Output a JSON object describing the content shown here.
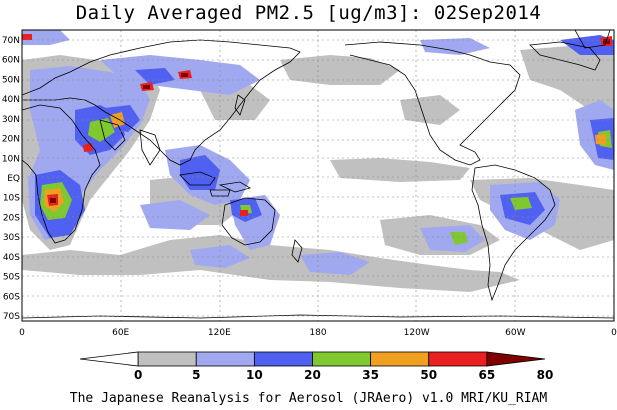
{
  "title": "Daily Averaged PM2.5 [ug/m3]: 02Sep2014",
  "footer": "The Japanese Reanalysis for Aerosol (JRAero) v1.0 MRI/KU_RIAM",
  "lat_labels": [
    "70N",
    "60N",
    "50N",
    "40N",
    "30N",
    "20N",
    "10N",
    "EQ",
    "10S",
    "20S",
    "30S",
    "40S",
    "50S",
    "60S",
    "70S"
  ],
  "lon_labels": [
    "0",
    "60E",
    "120E",
    "180",
    "120W",
    "60W",
    "0"
  ],
  "colorbar": {
    "labels": [
      "0",
      "5",
      "10",
      "20",
      "35",
      "50",
      "65",
      "80"
    ],
    "colors": [
      "#ffffff",
      "#c0c0c0",
      "#a0a8f0",
      "#5060f0",
      "#80c830",
      "#f0a020",
      "#e82020",
      "#800000"
    ]
  }
}
